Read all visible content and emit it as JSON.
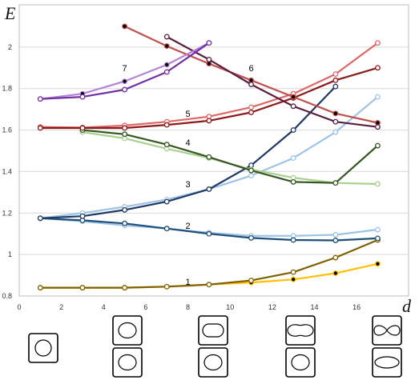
{
  "chart_data": {
    "type": "line",
    "xlabel": "d",
    "ylabel": "E",
    "xlim": [
      0,
      18
    ],
    "ylim": [
      0.8,
      2.2
    ],
    "x_ticks": [
      "0",
      "2",
      "4",
      "6",
      "8",
      "10",
      "12",
      "14",
      "16"
    ],
    "y_ticks": [
      "0.8",
      "1",
      "1.2",
      "1.4",
      "1.6",
      "1.8",
      "2"
    ],
    "grid": "horizontal",
    "legend": "none",
    "series_labels": [
      {
        "text": "1",
        "x": 8,
        "y": 0.87
      },
      {
        "text": "2",
        "x": 8,
        "y": 1.14
      },
      {
        "text": "3",
        "x": 8,
        "y": 1.34
      },
      {
        "text": "4",
        "x": 8,
        "y": 1.54
      },
      {
        "text": "5",
        "x": 8,
        "y": 1.68
      },
      {
        "text": "6",
        "x": 11,
        "y": 1.9
      },
      {
        "text": "7",
        "x": 5,
        "y": 1.9
      }
    ],
    "series": [
      {
        "color": "#ffc000",
        "marker": "filled",
        "x": [
          1,
          3,
          5,
          7,
          9,
          11,
          13,
          15,
          17
        ],
        "y": [
          0.84,
          0.84,
          0.84,
          0.845,
          0.855,
          0.865,
          0.88,
          0.91,
          0.955
        ]
      },
      {
        "color": "#7f6000",
        "marker": "open",
        "x": [
          1,
          3,
          5,
          7,
          9,
          11,
          13,
          15,
          17
        ],
        "y": [
          0.84,
          0.84,
          0.84,
          0.845,
          0.855,
          0.875,
          0.915,
          0.985,
          1.07
        ]
      },
      {
        "color": "#9dc3e6",
        "marker": "open",
        "x": [
          1,
          3,
          5,
          7,
          9,
          11,
          13,
          15,
          17
        ],
        "y": [
          1.175,
          1.16,
          1.14,
          1.125,
          1.105,
          1.09,
          1.09,
          1.095,
          1.12
        ]
      },
      {
        "color": "#1f4e79",
        "marker": "open",
        "x": [
          1,
          3,
          5,
          7,
          9,
          11,
          13,
          15,
          17
        ],
        "y": [
          1.175,
          1.165,
          1.15,
          1.125,
          1.1,
          1.08,
          1.07,
          1.068,
          1.078
        ]
      },
      {
        "color": "#9dc3e6",
        "marker": "open",
        "x": [
          1,
          3,
          5,
          7,
          9,
          11,
          13,
          15,
          17
        ],
        "y": [
          1.175,
          1.2,
          1.23,
          1.265,
          1.315,
          1.38,
          1.465,
          1.59,
          1.76
        ]
      },
      {
        "color": "#203864",
        "marker": "open",
        "x": [
          1,
          3,
          5,
          7,
          9,
          11,
          13,
          15
        ],
        "y": [
          1.175,
          1.185,
          1.215,
          1.255,
          1.315,
          1.43,
          1.6,
          1.81
        ]
      },
      {
        "color": "#a9d18e",
        "marker": "open",
        "x": [
          3,
          5,
          7,
          9,
          11,
          13,
          15,
          17
        ],
        "y": [
          1.59,
          1.56,
          1.51,
          1.465,
          1.41,
          1.37,
          1.345,
          1.34
        ]
      },
      {
        "color": "#375623",
        "marker": "open",
        "x": [
          3,
          5,
          7,
          9,
          11,
          13,
          15,
          17
        ],
        "y": [
          1.6,
          1.58,
          1.53,
          1.47,
          1.405,
          1.35,
          1.345,
          1.525
        ]
      },
      {
        "color": "#e06666",
        "marker": "open",
        "x": [
          1,
          3,
          5,
          7,
          9,
          11,
          13,
          15,
          17
        ],
        "y": [
          1.615,
          1.612,
          1.622,
          1.64,
          1.665,
          1.71,
          1.775,
          1.87,
          2.02
        ]
      },
      {
        "color": "#8b1a1a",
        "marker": "open",
        "x": [
          1,
          3,
          5,
          7,
          9,
          11,
          13,
          15,
          17
        ],
        "y": [
          1.61,
          1.61,
          1.61,
          1.625,
          1.645,
          1.685,
          1.755,
          1.84,
          1.9
        ]
      },
      {
        "color": "#c0504d",
        "marker": "filled",
        "x": [
          5,
          7,
          9,
          11,
          13,
          15,
          17
        ],
        "y": [
          2.1,
          2.005,
          1.92,
          1.84,
          1.76,
          1.68,
          1.635
        ]
      },
      {
        "color": "#5b1f3e",
        "marker": "open",
        "x": [
          7,
          9,
          11,
          13,
          15,
          17
        ],
        "y": [
          2.05,
          1.94,
          1.82,
          1.715,
          1.64,
          1.615
        ]
      },
      {
        "color": "#b483d6",
        "marker": "filled",
        "x": [
          1,
          3,
          5,
          7,
          9
        ],
        "y": [
          1.75,
          1.775,
          1.835,
          1.915,
          2.02
        ]
      },
      {
        "color": "#7030a0",
        "marker": "open",
        "x": [
          1,
          3,
          5,
          7,
          9
        ],
        "y": [
          1.75,
          1.76,
          1.795,
          1.88,
          2.02
        ]
      }
    ]
  },
  "shape_thumbnails": [
    {
      "column": "0",
      "top": "circle",
      "bottom": ""
    },
    {
      "column": "1",
      "top": "oval",
      "bottom": "oval"
    },
    {
      "column": "2",
      "top": "rounded-oval",
      "bottom": "oval"
    },
    {
      "column": "3",
      "top": "peanut",
      "bottom": "oval"
    },
    {
      "column": "4",
      "top": "figure-eight",
      "bottom": "ellipse"
    }
  ]
}
